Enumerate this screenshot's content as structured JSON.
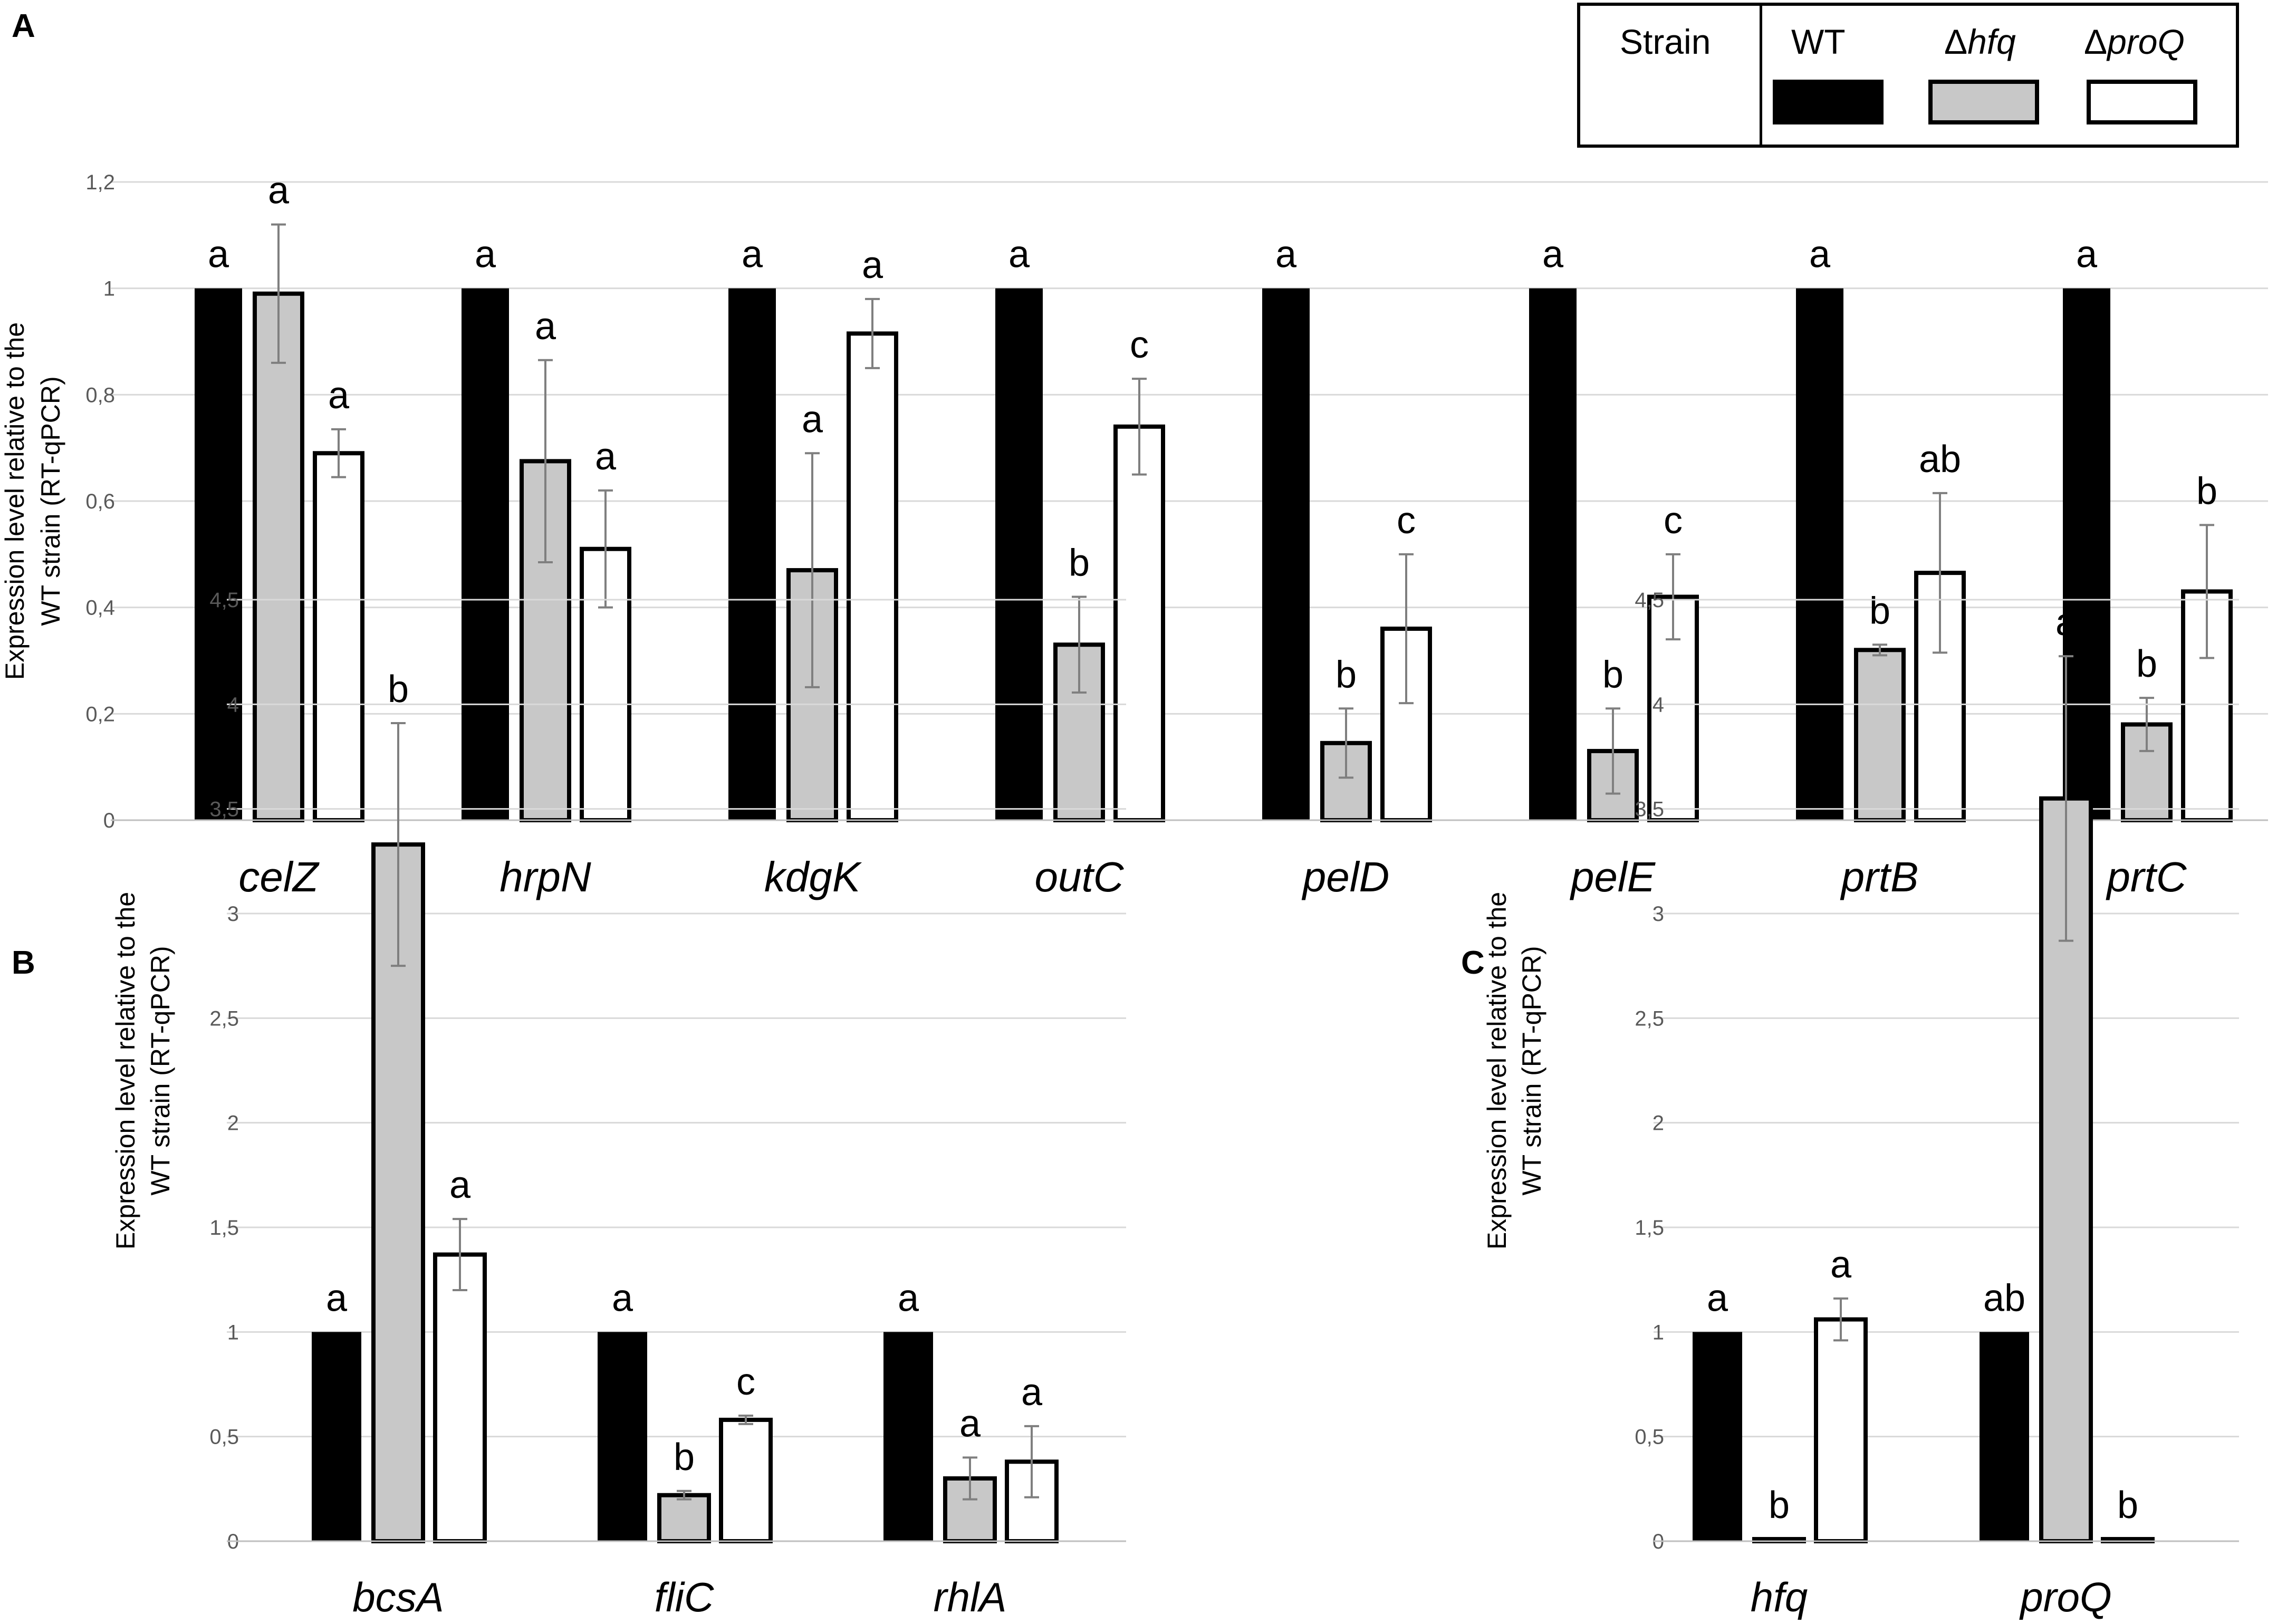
{
  "legend": {
    "header": "Strain",
    "strains": [
      {
        "prefix": "",
        "name": "WT",
        "color": "#000000"
      },
      {
        "prefix": "Δ",
        "name": "hfq",
        "color": "#c8c8c8"
      },
      {
        "prefix": "Δ",
        "name": "proQ",
        "color": "#ffffff"
      }
    ]
  },
  "panel_letters": {
    "A": "A",
    "B": "B",
    "C": "C"
  },
  "colors": {
    "wt": "#000000",
    "hfq": "#c8c8c8",
    "proq": "#ffffff",
    "grid": "#d9d9d9",
    "tick": "#595959",
    "error": "#7f7f7f"
  },
  "chart_data": [
    {
      "panel": "A",
      "type": "bar",
      "ylabel_lines": [
        "Expression level relative to the",
        "WT strain (RT-qPCR)"
      ],
      "ylim": [
        0,
        1.2
      ],
      "yticks": [
        "0",
        "0,2",
        "0,4",
        "0,6",
        "0,8",
        "1",
        "1,2"
      ],
      "categories": [
        "celZ",
        "hrpN",
        "kdgK",
        "outC",
        "pelD",
        "pelE",
        "prtB",
        "prtC"
      ],
      "series": [
        {
          "name": "WT",
          "values": [
            1,
            1,
            1,
            1,
            1,
            1,
            1,
            1
          ],
          "errors": [
            0,
            0,
            0,
            0,
            0,
            0,
            0,
            0
          ],
          "letters": [
            "a",
            "a",
            "a",
            "a",
            "a",
            "a",
            "a",
            "a"
          ]
        },
        {
          "name": "Δhfq",
          "values": [
            0.99,
            0.675,
            0.47,
            0.33,
            0.145,
            0.13,
            0.32,
            0.18
          ],
          "errors": [
            0.13,
            0.19,
            0.22,
            0.09,
            0.065,
            0.08,
            0.01,
            0.05
          ],
          "letters": [
            "a",
            "a",
            "a",
            "b",
            "b",
            "b",
            "b",
            "b"
          ]
        },
        {
          "name": "ΔproQ",
          "values": [
            0.69,
            0.51,
            0.915,
            0.74,
            0.36,
            0.42,
            0.465,
            0.43
          ],
          "errors": [
            0.045,
            0.11,
            0.065,
            0.09,
            0.14,
            0.08,
            0.15,
            0.125
          ],
          "letters": [
            "a",
            "a",
            "a",
            "c",
            "c",
            "c",
            "ab",
            "b"
          ]
        }
      ]
    },
    {
      "panel": "B",
      "type": "bar",
      "ylabel_lines": [
        "Expression level relative to the",
        "WT strain (RT-qPCR)"
      ],
      "ylim": [
        0,
        4.5
      ],
      "yticks": [
        "0",
        "0,5",
        "1",
        "1,5",
        "2",
        "2,5",
        "3",
        "3,5",
        "4",
        "4,5"
      ],
      "categories": [
        "bcsA",
        "fliC",
        "rhlA"
      ],
      "series": [
        {
          "name": "WT",
          "values": [
            1,
            1,
            1
          ],
          "errors": [
            0,
            0,
            0
          ],
          "letters": [
            "a",
            "a",
            "a"
          ]
        },
        {
          "name": "Δhfq",
          "values": [
            3.33,
            0.22,
            0.3
          ],
          "errors": [
            0.58,
            0.02,
            0.1
          ],
          "letters": [
            "b",
            "b",
            "a"
          ]
        },
        {
          "name": "ΔproQ",
          "values": [
            1.37,
            0.58,
            0.38
          ],
          "errors": [
            0.17,
            0.02,
            0.17
          ],
          "letters": [
            "a",
            "c",
            "a"
          ]
        }
      ]
    },
    {
      "panel": "C",
      "type": "bar",
      "ylabel_lines": [
        "Expression level relative to the",
        "WT strain (RT-qPCR)"
      ],
      "ylim": [
        0,
        4.5
      ],
      "yticks": [
        "0",
        "0,5",
        "1",
        "1,5",
        "2",
        "2,5",
        "3",
        "3,5",
        "4",
        "4,5"
      ],
      "categories": [
        "hfq",
        "proQ"
      ],
      "series": [
        {
          "name": "WT",
          "values": [
            1,
            1
          ],
          "errors": [
            0,
            0
          ],
          "letters": [
            "a",
            "ab"
          ]
        },
        {
          "name": "Δhfq",
          "values": [
            0.01,
            3.55
          ],
          "errors": [
            0,
            0.68
          ],
          "letters": [
            "b",
            "a"
          ]
        },
        {
          "name": "ΔproQ",
          "values": [
            1.06,
            0.01
          ],
          "errors": [
            0.1,
            0
          ],
          "letters": [
            "a",
            "b"
          ]
        }
      ]
    }
  ]
}
